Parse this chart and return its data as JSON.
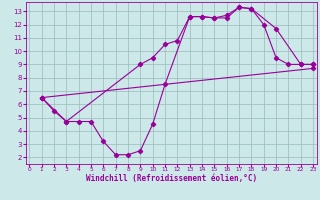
{
  "xlabel": "Windchill (Refroidissement éolien,°C)",
  "xlim": [
    -0.3,
    23.3
  ],
  "ylim": [
    1.5,
    13.7
  ],
  "xticks": [
    0,
    1,
    2,
    3,
    4,
    5,
    6,
    7,
    8,
    9,
    10,
    11,
    12,
    13,
    14,
    15,
    16,
    17,
    18,
    19,
    20,
    21,
    22,
    23
  ],
  "yticks": [
    2,
    3,
    4,
    5,
    6,
    7,
    8,
    9,
    10,
    11,
    12,
    13
  ],
  "line_color": "#990099",
  "bg_color": "#cce8e8",
  "grid_color": "#99bbbb",
  "curve1_x": [
    1,
    2,
    3,
    4,
    5,
    6,
    7,
    8,
    9,
    10,
    11,
    13,
    14,
    15,
    16,
    17,
    18,
    19,
    20,
    21,
    22,
    23
  ],
  "curve1_y": [
    6.5,
    5.5,
    4.7,
    4.7,
    4.7,
    3.2,
    2.2,
    2.2,
    2.5,
    4.5,
    7.5,
    12.6,
    12.6,
    12.5,
    12.7,
    13.3,
    13.2,
    12.0,
    9.5,
    9.0,
    9.0,
    9.0
  ],
  "curve2_x": [
    1,
    3,
    9,
    10,
    11,
    12,
    13,
    14,
    15,
    16,
    17,
    18,
    20,
    22,
    23
  ],
  "curve2_y": [
    6.5,
    4.7,
    9.0,
    9.5,
    10.5,
    10.8,
    12.6,
    12.6,
    12.5,
    12.5,
    13.3,
    13.2,
    11.7,
    9.0,
    9.0
  ],
  "line3_x": [
    1,
    23
  ],
  "line3_y": [
    6.5,
    8.7
  ]
}
